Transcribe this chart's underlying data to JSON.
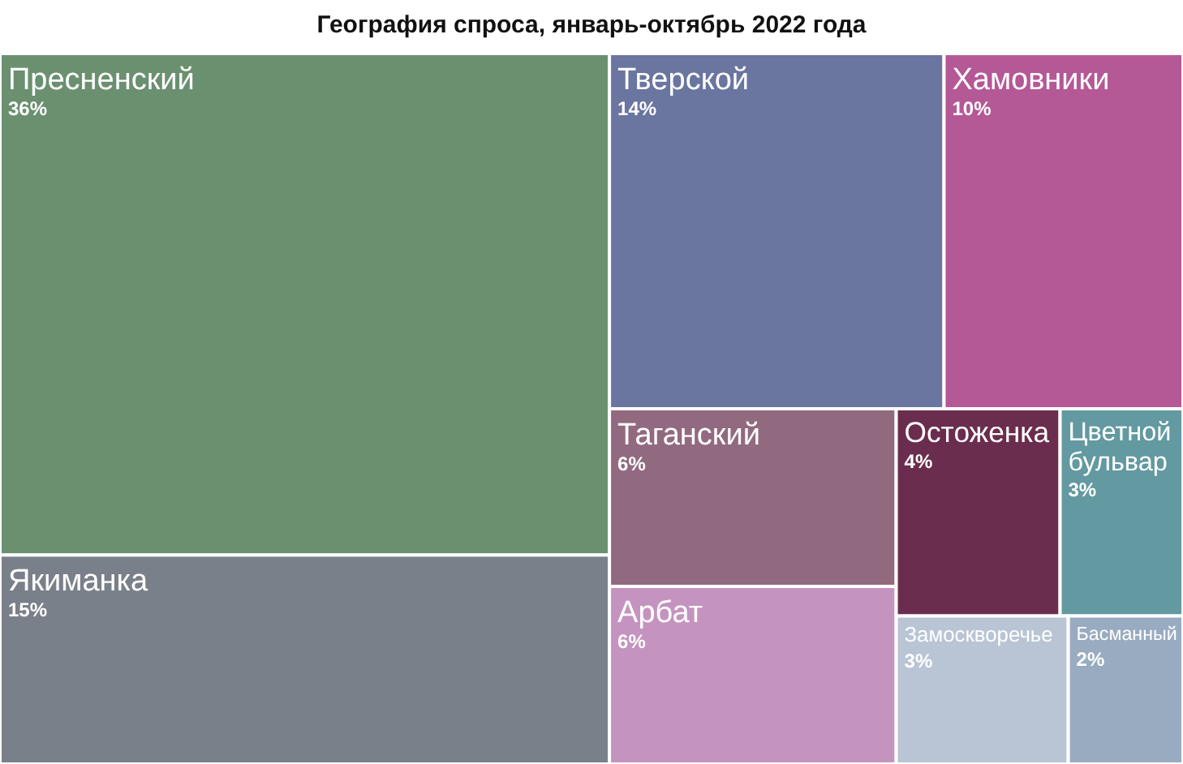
{
  "chart_data": {
    "type": "other",
    "title": "География спроса, январь-октябрь 2022 года",
    "categories": [
      "Пресненский",
      "Якиманка",
      "Тверской",
      "Хамовники",
      "Таганский",
      "Арбат",
      "Остоженка",
      "Цветной бульвар",
      "Замоскворечье",
      "Басманный"
    ],
    "values": [
      36,
      15,
      14,
      10,
      6,
      6,
      4,
      3,
      3,
      2
    ],
    "value_labels": [
      "36%",
      "15%",
      "14%",
      "10%",
      "6%",
      "6%",
      "4%",
      "3%",
      "3%",
      "2%"
    ],
    "colors": [
      "#6a9070",
      "#7a808a",
      "#6a75a0",
      "#b55896",
      "#916a80",
      "#c593bf",
      "#6b2d4e",
      "#6399a0",
      "#b9c5d5",
      "#99abc0"
    ]
  }
}
